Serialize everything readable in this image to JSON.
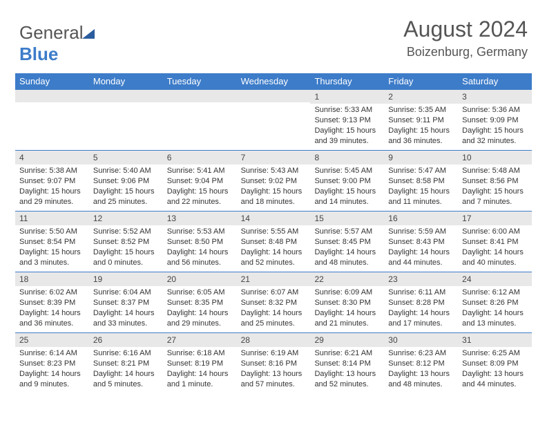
{
  "brand": {
    "part1": "General",
    "part2": "Blue"
  },
  "title": "August 2024",
  "location": "Boizenburg, Germany",
  "colors": {
    "header_bg": "#3d7cc9",
    "daynum_bg": "#e8e8e8",
    "border": "#3d7cc9",
    "text": "#333333",
    "title_text": "#555555"
  },
  "daynames": [
    "Sunday",
    "Monday",
    "Tuesday",
    "Wednesday",
    "Thursday",
    "Friday",
    "Saturday"
  ],
  "weeks": [
    [
      null,
      null,
      null,
      null,
      {
        "n": "1",
        "sunrise": "5:33 AM",
        "sunset": "9:13 PM",
        "daylight": "15 hours and 39 minutes."
      },
      {
        "n": "2",
        "sunrise": "5:35 AM",
        "sunset": "9:11 PM",
        "daylight": "15 hours and 36 minutes."
      },
      {
        "n": "3",
        "sunrise": "5:36 AM",
        "sunset": "9:09 PM",
        "daylight": "15 hours and 32 minutes."
      }
    ],
    [
      {
        "n": "4",
        "sunrise": "5:38 AM",
        "sunset": "9:07 PM",
        "daylight": "15 hours and 29 minutes."
      },
      {
        "n": "5",
        "sunrise": "5:40 AM",
        "sunset": "9:06 PM",
        "daylight": "15 hours and 25 minutes."
      },
      {
        "n": "6",
        "sunrise": "5:41 AM",
        "sunset": "9:04 PM",
        "daylight": "15 hours and 22 minutes."
      },
      {
        "n": "7",
        "sunrise": "5:43 AM",
        "sunset": "9:02 PM",
        "daylight": "15 hours and 18 minutes."
      },
      {
        "n": "8",
        "sunrise": "5:45 AM",
        "sunset": "9:00 PM",
        "daylight": "15 hours and 14 minutes."
      },
      {
        "n": "9",
        "sunrise": "5:47 AM",
        "sunset": "8:58 PM",
        "daylight": "15 hours and 11 minutes."
      },
      {
        "n": "10",
        "sunrise": "5:48 AM",
        "sunset": "8:56 PM",
        "daylight": "15 hours and 7 minutes."
      }
    ],
    [
      {
        "n": "11",
        "sunrise": "5:50 AM",
        "sunset": "8:54 PM",
        "daylight": "15 hours and 3 minutes."
      },
      {
        "n": "12",
        "sunrise": "5:52 AM",
        "sunset": "8:52 PM",
        "daylight": "15 hours and 0 minutes."
      },
      {
        "n": "13",
        "sunrise": "5:53 AM",
        "sunset": "8:50 PM",
        "daylight": "14 hours and 56 minutes."
      },
      {
        "n": "14",
        "sunrise": "5:55 AM",
        "sunset": "8:48 PM",
        "daylight": "14 hours and 52 minutes."
      },
      {
        "n": "15",
        "sunrise": "5:57 AM",
        "sunset": "8:45 PM",
        "daylight": "14 hours and 48 minutes."
      },
      {
        "n": "16",
        "sunrise": "5:59 AM",
        "sunset": "8:43 PM",
        "daylight": "14 hours and 44 minutes."
      },
      {
        "n": "17",
        "sunrise": "6:00 AM",
        "sunset": "8:41 PM",
        "daylight": "14 hours and 40 minutes."
      }
    ],
    [
      {
        "n": "18",
        "sunrise": "6:02 AM",
        "sunset": "8:39 PM",
        "daylight": "14 hours and 36 minutes."
      },
      {
        "n": "19",
        "sunrise": "6:04 AM",
        "sunset": "8:37 PM",
        "daylight": "14 hours and 33 minutes."
      },
      {
        "n": "20",
        "sunrise": "6:05 AM",
        "sunset": "8:35 PM",
        "daylight": "14 hours and 29 minutes."
      },
      {
        "n": "21",
        "sunrise": "6:07 AM",
        "sunset": "8:32 PM",
        "daylight": "14 hours and 25 minutes."
      },
      {
        "n": "22",
        "sunrise": "6:09 AM",
        "sunset": "8:30 PM",
        "daylight": "14 hours and 21 minutes."
      },
      {
        "n": "23",
        "sunrise": "6:11 AM",
        "sunset": "8:28 PM",
        "daylight": "14 hours and 17 minutes."
      },
      {
        "n": "24",
        "sunrise": "6:12 AM",
        "sunset": "8:26 PM",
        "daylight": "14 hours and 13 minutes."
      }
    ],
    [
      {
        "n": "25",
        "sunrise": "6:14 AM",
        "sunset": "8:23 PM",
        "daylight": "14 hours and 9 minutes."
      },
      {
        "n": "26",
        "sunrise": "6:16 AM",
        "sunset": "8:21 PM",
        "daylight": "14 hours and 5 minutes."
      },
      {
        "n": "27",
        "sunrise": "6:18 AM",
        "sunset": "8:19 PM",
        "daylight": "14 hours and 1 minute."
      },
      {
        "n": "28",
        "sunrise": "6:19 AM",
        "sunset": "8:16 PM",
        "daylight": "13 hours and 57 minutes."
      },
      {
        "n": "29",
        "sunrise": "6:21 AM",
        "sunset": "8:14 PM",
        "daylight": "13 hours and 52 minutes."
      },
      {
        "n": "30",
        "sunrise": "6:23 AM",
        "sunset": "8:12 PM",
        "daylight": "13 hours and 48 minutes."
      },
      {
        "n": "31",
        "sunrise": "6:25 AM",
        "sunset": "8:09 PM",
        "daylight": "13 hours and 44 minutes."
      }
    ]
  ],
  "labels": {
    "sunrise": "Sunrise: ",
    "sunset": "Sunset: ",
    "daylight": "Daylight: "
  }
}
